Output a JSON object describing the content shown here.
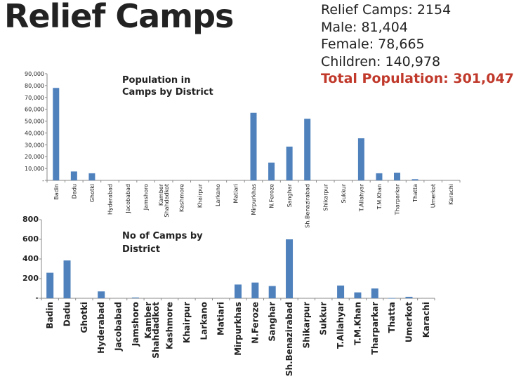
{
  "slide": {
    "title": "Relief Camps",
    "summary": {
      "camps": "Relief Camps: 2154",
      "male": "Male: 81,404",
      "female": "Female: 78,665",
      "children": "Children: 140,978",
      "total": "Total Population: 301,047"
    }
  },
  "colors": {
    "bar": "#4f81bd",
    "total_text": "#c0392b",
    "axis": "#888888"
  },
  "chart_data": [
    {
      "type": "bar",
      "title": "Population in Camps by District",
      "title_lines": [
        "Population in",
        "Camps by District"
      ],
      "categories": [
        "Badin",
        "Dadu",
        "Ghotki",
        "Hyderabad",
        "Jacobabad",
        "Jamshoro",
        "Kamber Shahdadkot",
        "Kashmore",
        "Khairpur",
        "Larkano",
        "Matiari",
        "Mirpurkhas",
        "N.Feroze",
        "Sanghar",
        "Sh.Benazirabad",
        "Shikarpur",
        "Sukkur",
        "T.Allahyar",
        "T.M.Khan",
        "Tharparkar",
        "Thatta",
        "Umerkot",
        "Karachi"
      ],
      "values": [
        78000,
        7500,
        6000,
        0,
        0,
        0,
        0,
        0,
        0,
        0,
        0,
        57000,
        15000,
        28500,
        52000,
        0,
        0,
        35500,
        6000,
        6500,
        1000,
        0,
        0
      ],
      "yticks": [
        0,
        10000,
        20000,
        30000,
        40000,
        50000,
        60000,
        70000,
        80000,
        90000
      ],
      "ytick_labels": [
        "-",
        "10,000",
        "20,000",
        "30,000",
        "40,000",
        "50,000",
        "60,000",
        "70,000",
        "80,000",
        "90,000"
      ],
      "ylim": [
        0,
        90000
      ],
      "xlabel": "",
      "ylabel": "",
      "grid": false,
      "legend": "none"
    },
    {
      "type": "bar",
      "title": "No of Camps by District",
      "title_lines": [
        "No of Camps by",
        "District"
      ],
      "categories": [
        "Badin",
        "Dadu",
        "Ghotki",
        "Hyderabad",
        "Jacobabad",
        "Jamshoro",
        "Kamber Shahdadkot",
        "Kashmore",
        "Khairpur",
        "Larkano",
        "Matiari",
        "Mirpurkhas",
        "N.Feroze",
        "Sanghar",
        "Sh.Benazirabad",
        "Shikarpur",
        "Sukkur",
        "T.Allahyar",
        "T.M.Khan",
        "Tharparkar",
        "Thatta",
        "Umerkot",
        "Karachi"
      ],
      "values": [
        260,
        385,
        0,
        70,
        0,
        8,
        0,
        0,
        0,
        0,
        0,
        140,
        160,
        125,
        600,
        0,
        0,
        130,
        60,
        100,
        2,
        15,
        0
      ],
      "yticks": [
        0,
        200,
        400,
        600,
        800
      ],
      "ytick_labels": [
        "-",
        "200",
        "400",
        "600",
        "800"
      ],
      "ylim": [
        0,
        800
      ],
      "xlabel": "",
      "ylabel": "",
      "grid": false,
      "legend": "none"
    }
  ]
}
